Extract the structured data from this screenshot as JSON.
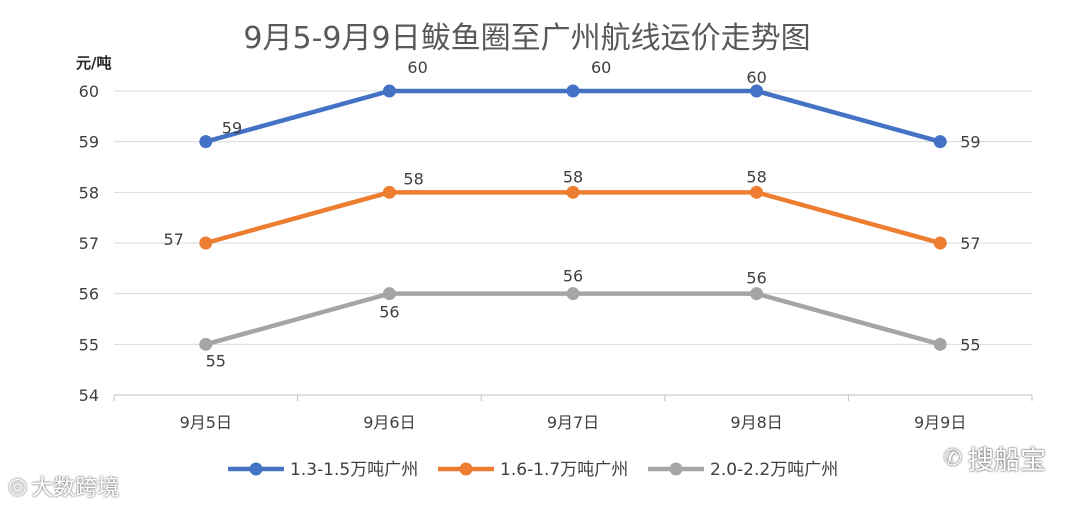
{
  "chart_data": {
    "type": "line",
    "title": "9月5-9月9日鲅鱼圈至广州航线运价走势图",
    "ylabel": "元/吨",
    "xlabel": "",
    "categories": [
      "9月5日",
      "9月6日",
      "9月7日",
      "9月8日",
      "9月9日"
    ],
    "ylim": [
      54,
      60
    ],
    "yticks": [
      54,
      55,
      56,
      57,
      58,
      59,
      60
    ],
    "grid": true,
    "legend_position": "bottom",
    "series": [
      {
        "name": "1.3-1.5万吨广州",
        "values": [
          59,
          60,
          60,
          60,
          59
        ],
        "color": "#4472C4"
      },
      {
        "name": "1.6-1.7万吨广州",
        "values": [
          57,
          58,
          58,
          58,
          57
        ],
        "color": "#ED7D31"
      },
      {
        "name": "2.0-2.2万吨广州",
        "values": [
          55,
          56,
          56,
          56,
          55
        ],
        "color": "#A5A5A5"
      }
    ]
  },
  "watermarks": {
    "left": "大数跨境",
    "right": "搜船宝",
    "left_icon": "weibo-icon",
    "right_icon": "wechat-icon"
  }
}
